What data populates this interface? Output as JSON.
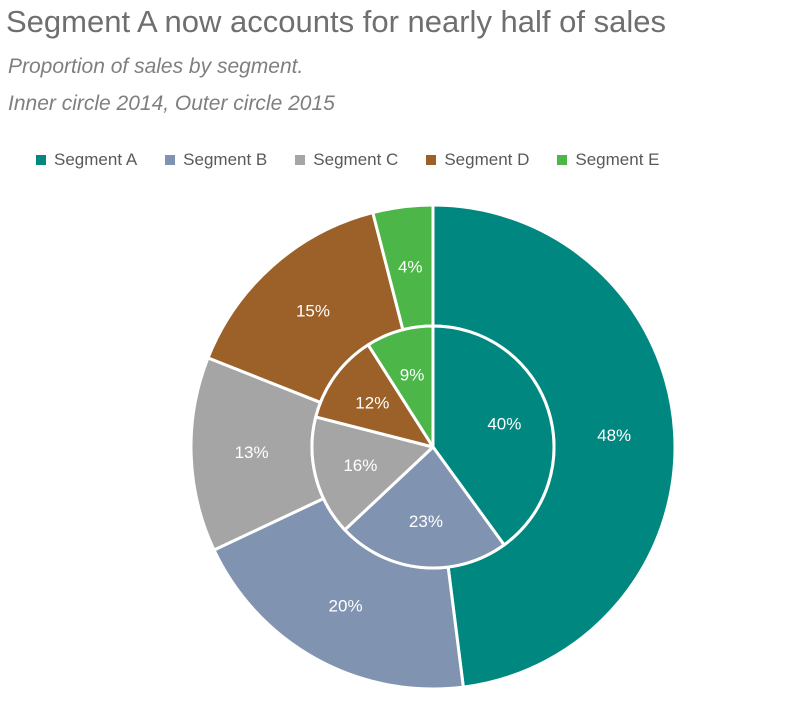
{
  "chart_data": {
    "type": "pie",
    "style": "nested-donut",
    "title": "Segment A now accounts for nearly half of sales",
    "subtitle_lines": [
      "Proportion of sales by segment.",
      "Inner circle 2014, Outer circle 2015"
    ],
    "categories": [
      "Segment A",
      "Segment B",
      "Segment C",
      "Segment D",
      "Segment E"
    ],
    "colors": [
      "#00877f",
      "#8094b2",
      "#a5a5a5",
      "#9c6129",
      "#4cb748"
    ],
    "series": [
      {
        "name": "2014",
        "ring": "inner",
        "values": [
          40,
          23,
          16,
          12,
          9
        ],
        "labels": [
          "40%",
          "23%",
          "16%",
          "12%",
          "9%"
        ]
      },
      {
        "name": "2015",
        "ring": "outer",
        "values": [
          48,
          20,
          13,
          15,
          4
        ],
        "labels": [
          "48%",
          "20%",
          "13%",
          "15%",
          "4%"
        ]
      }
    ],
    "legend_position": "top"
  }
}
